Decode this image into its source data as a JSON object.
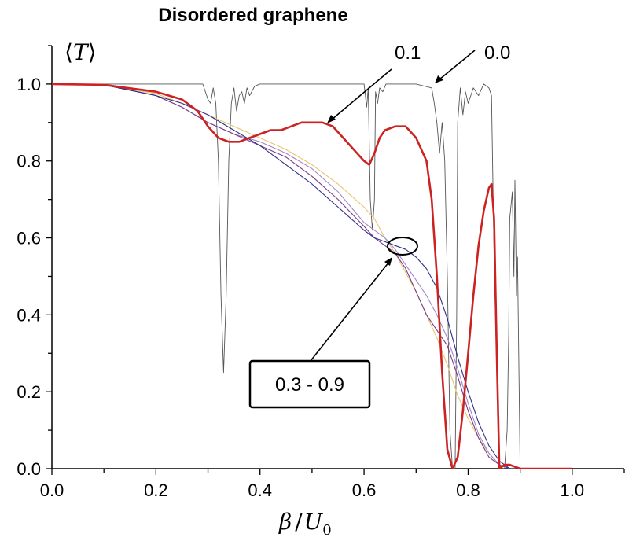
{
  "chart_data": {
    "type": "line",
    "title": "Disordered graphene",
    "xlabel": "β / U0",
    "xlabel_main": "β",
    "xlabel_slash": "/",
    "xlabel_var": "U",
    "xlabel_sub": "0",
    "ylabel": "⟨T⟩",
    "ylabel_left": "⟨",
    "ylabel_var": "T",
    "ylabel_right": "⟩",
    "xlim": [
      0.0,
      1.1
    ],
    "ylim": [
      0.0,
      1.1
    ],
    "xticks": [
      "0.0",
      "0.2",
      "0.4",
      "0.6",
      "0.8",
      "1.0"
    ],
    "xtick_values": [
      0.0,
      0.2,
      0.4,
      0.6,
      0.8,
      1.0
    ],
    "yticks": [
      "0.0",
      "0.2",
      "0.4",
      "0.6",
      "0.8",
      "1.0"
    ],
    "ytick_values": [
      0.0,
      0.2,
      0.4,
      0.6,
      0.8,
      1.0
    ],
    "grid": false,
    "annotations": [
      {
        "text": "0.1",
        "points_to": [
          0.54,
          0.9
        ]
      },
      {
        "text": "0.0",
        "points_to": [
          0.74,
          1.0
        ]
      },
      {
        "text": "0.3 - 0.9",
        "points_to": [
          0.65,
          0.55
        ],
        "boxed": true
      }
    ],
    "series": [
      {
        "name": "0.0",
        "color": "#555555",
        "width": 0.9,
        "x": [
          0.0,
          0.25,
          0.29,
          0.3,
          0.305,
          0.31,
          0.315,
          0.32,
          0.325,
          0.33,
          0.335,
          0.34,
          0.345,
          0.35,
          0.355,
          0.36,
          0.365,
          0.37,
          0.375,
          0.38,
          0.39,
          0.4,
          0.5,
          0.6,
          0.605,
          0.608,
          0.612,
          0.616,
          0.62,
          0.622,
          0.626,
          0.63,
          0.636,
          0.642,
          0.7,
          0.73,
          0.735,
          0.74,
          0.745,
          0.75,
          0.755,
          0.76,
          0.765,
          0.77,
          0.775,
          0.778,
          0.78,
          0.785,
          0.79,
          0.795,
          0.8,
          0.81,
          0.82,
          0.83,
          0.84,
          0.845,
          0.85,
          0.855,
          0.86,
          0.865,
          0.87,
          0.875,
          0.878,
          0.88,
          0.885,
          0.888,
          0.89,
          0.893,
          0.895,
          0.9,
          0.905,
          0.91,
          1.0
        ],
        "y": [
          1.0,
          1.0,
          1.0,
          0.96,
          0.95,
          0.99,
          0.95,
          0.8,
          0.45,
          0.25,
          0.45,
          0.8,
          0.95,
          0.99,
          0.93,
          0.97,
          0.98,
          0.95,
          0.99,
          0.97,
          0.995,
          1.0,
          1.0,
          1.0,
          0.94,
          0.99,
          0.7,
          0.62,
          0.7,
          0.98,
          0.95,
          0.99,
          0.98,
          1.0,
          1.0,
          0.99,
          0.95,
          0.9,
          0.82,
          0.9,
          0.8,
          0.5,
          0.1,
          0.0,
          0.0,
          0.4,
          0.9,
          0.99,
          0.92,
          0.98,
          0.95,
          0.99,
          0.97,
          1.0,
          0.99,
          0.97,
          0.55,
          0.25,
          0.0,
          0.0,
          0.0,
          0.1,
          0.35,
          0.65,
          0.72,
          0.5,
          0.75,
          0.45,
          0.55,
          0.0,
          0.0,
          0.0,
          0.0
        ]
      },
      {
        "name": "0.3",
        "color": "#e6c56a",
        "width": 1.1,
        "x": [
          0.0,
          0.1,
          0.2,
          0.25,
          0.3,
          0.35,
          0.4,
          0.45,
          0.5,
          0.55,
          0.6,
          0.62,
          0.64,
          0.66,
          0.68,
          0.7,
          0.72,
          0.74,
          0.76,
          0.78,
          0.8,
          0.82,
          0.84,
          0.86,
          0.88,
          0.9,
          1.0
        ],
        "y": [
          1.0,
          0.998,
          0.975,
          0.95,
          0.92,
          0.89,
          0.86,
          0.83,
          0.79,
          0.74,
          0.68,
          0.65,
          0.6,
          0.56,
          0.51,
          0.46,
          0.4,
          0.34,
          0.27,
          0.19,
          0.13,
          0.08,
          0.04,
          0.01,
          0.0,
          0.0,
          0.0
        ]
      },
      {
        "name": "0.5",
        "color": "#a088c8",
        "width": 1.1,
        "x": [
          0.0,
          0.1,
          0.2,
          0.25,
          0.3,
          0.35,
          0.4,
          0.45,
          0.5,
          0.55,
          0.6,
          0.62,
          0.64,
          0.66,
          0.68,
          0.7,
          0.72,
          0.74,
          0.76,
          0.78,
          0.8,
          0.82,
          0.84,
          0.86,
          0.88,
          0.9,
          1.0
        ],
        "y": [
          1.0,
          0.998,
          0.97,
          0.94,
          0.9,
          0.87,
          0.85,
          0.82,
          0.78,
          0.72,
          0.64,
          0.62,
          0.6,
          0.57,
          0.53,
          0.49,
          0.45,
          0.4,
          0.34,
          0.26,
          0.17,
          0.09,
          0.04,
          0.01,
          0.0,
          0.0,
          0.0
        ]
      },
      {
        "name": "0.7",
        "color": "#7a3a8a",
        "width": 1.1,
        "x": [
          0.0,
          0.1,
          0.2,
          0.25,
          0.3,
          0.35,
          0.4,
          0.45,
          0.5,
          0.55,
          0.6,
          0.62,
          0.64,
          0.66,
          0.68,
          0.7,
          0.72,
          0.74,
          0.76,
          0.78,
          0.8,
          0.82,
          0.84,
          0.86,
          0.88,
          0.9,
          1.0
        ],
        "y": [
          1.0,
          0.998,
          0.97,
          0.94,
          0.9,
          0.87,
          0.84,
          0.81,
          0.76,
          0.7,
          0.63,
          0.6,
          0.58,
          0.56,
          0.52,
          0.46,
          0.4,
          0.36,
          0.32,
          0.24,
          0.15,
          0.08,
          0.03,
          0.01,
          0.0,
          0.0,
          0.0
        ]
      },
      {
        "name": "0.9",
        "color": "#30308a",
        "width": 1.1,
        "x": [
          0.0,
          0.1,
          0.2,
          0.25,
          0.3,
          0.35,
          0.4,
          0.45,
          0.5,
          0.55,
          0.6,
          0.62,
          0.64,
          0.66,
          0.68,
          0.7,
          0.72,
          0.74,
          0.76,
          0.78,
          0.8,
          0.82,
          0.84,
          0.86,
          0.88,
          0.9,
          1.0
        ],
        "y": [
          1.0,
          0.998,
          0.97,
          0.95,
          0.92,
          0.88,
          0.84,
          0.79,
          0.74,
          0.68,
          0.62,
          0.6,
          0.59,
          0.58,
          0.57,
          0.55,
          0.52,
          0.47,
          0.39,
          0.29,
          0.2,
          0.12,
          0.06,
          0.02,
          0.0,
          0.0,
          0.0
        ]
      },
      {
        "name": "0.1",
        "color": "#cc2222",
        "width": 2.6,
        "x": [
          0.0,
          0.1,
          0.2,
          0.25,
          0.28,
          0.3,
          0.32,
          0.34,
          0.36,
          0.38,
          0.4,
          0.42,
          0.44,
          0.46,
          0.48,
          0.5,
          0.52,
          0.54,
          0.56,
          0.58,
          0.6,
          0.61,
          0.62,
          0.63,
          0.64,
          0.66,
          0.68,
          0.7,
          0.72,
          0.73,
          0.74,
          0.75,
          0.76,
          0.77,
          0.78,
          0.79,
          0.8,
          0.81,
          0.82,
          0.83,
          0.84,
          0.845,
          0.85,
          0.855,
          0.86,
          0.87,
          0.88,
          0.9,
          1.0
        ],
        "y": [
          1.0,
          0.998,
          0.98,
          0.96,
          0.93,
          0.89,
          0.86,
          0.85,
          0.85,
          0.86,
          0.87,
          0.88,
          0.88,
          0.89,
          0.9,
          0.9,
          0.9,
          0.89,
          0.86,
          0.83,
          0.8,
          0.79,
          0.82,
          0.86,
          0.88,
          0.89,
          0.89,
          0.86,
          0.8,
          0.7,
          0.5,
          0.25,
          0.05,
          0.0,
          0.03,
          0.15,
          0.3,
          0.45,
          0.58,
          0.67,
          0.73,
          0.74,
          0.65,
          0.3,
          0.0,
          0.01,
          0.01,
          0.0,
          0.0
        ]
      }
    ]
  }
}
